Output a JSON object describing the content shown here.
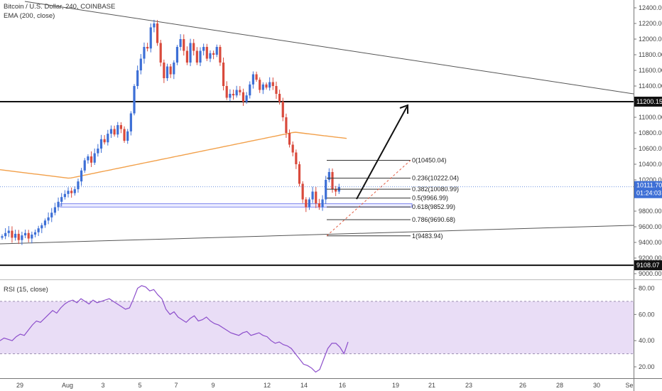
{
  "header": {
    "symbol_line": "Bitcoin / U.S. Dollar, 240, COINBASE",
    "ema_line": "EMA (200, close)",
    "rsi_line": "RSI (15, close)"
  },
  "colors": {
    "up": "#3d6fd6",
    "down": "#d94a3c",
    "ema": "#f2a04a",
    "rsi": "#8c4ecb",
    "rsi_band": "#e9ddf6",
    "price_tag": "#3d6fd6"
  },
  "chart_data": [
    {
      "type": "candlestick",
      "title": "Bitcoin / U.S. Dollar, 240, COINBASE",
      "ylim": [
        9000,
        12400
      ],
      "y_ticks": [
        12400,
        12200,
        12000,
        11800,
        11600,
        11400,
        11200,
        11000,
        10800,
        10600,
        10400,
        10200,
        10000,
        9800,
        9600,
        9400,
        9200,
        9000
      ],
      "x_ticks": [
        "29",
        "Aug",
        "3",
        "5",
        "7",
        "9",
        "12",
        "14",
        "16",
        "19",
        "21",
        "23",
        "26",
        "28",
        "30",
        "Se"
      ],
      "close_series": [
        9480,
        9520,
        9550,
        9460,
        9510,
        9430,
        9490,
        9520,
        9450,
        9500,
        9530,
        9580,
        9620,
        9680,
        9720,
        9780,
        9850,
        9920,
        9980,
        10020,
        10060,
        10030,
        10080,
        10180,
        10320,
        10450,
        10500,
        10420,
        10540,
        10600,
        10720,
        10680,
        10790,
        10850,
        10780,
        10900,
        10850,
        10700,
        10820,
        11050,
        11400,
        11600,
        11750,
        11900,
        11880,
        12150,
        12200,
        11950,
        11700,
        11500,
        11650,
        11550,
        11700,
        11900,
        12000,
        11850,
        11700,
        11950,
        11850,
        11700,
        11850,
        11900,
        11750,
        11820,
        11800,
        11900,
        11700,
        11400,
        11250,
        11300,
        11280,
        11350,
        11320,
        11200,
        11280,
        11420,
        11550,
        11480,
        11350,
        11420,
        11380,
        11450,
        11400,
        11300,
        11200,
        11000,
        10800,
        10650,
        10550,
        10400,
        10150,
        9950,
        9850,
        9950,
        10050,
        9900,
        9850,
        9950,
        10200,
        10300,
        10080,
        10050,
        10111
      ],
      "ema200": {
        "label": "EMA (200, close)",
        "start": 10330,
        "end": 10730
      },
      "horizontal_levels": [
        {
          "label": "11200.15",
          "value": 11200.15
        },
        {
          "label": "9108.07",
          "value": 9108.07
        }
      ],
      "last_price": {
        "label": "10111.70",
        "countdown": "01:24:03",
        "value": 10111.7
      },
      "fibonacci": [
        {
          "label": "0(10450.04)",
          "value": 10450.04
        },
        {
          "label": "0.236(10222.04)",
          "value": 10222.04
        },
        {
          "label": "0.382(10080.99)",
          "value": 10080.99
        },
        {
          "label": "0.5(9966.99)",
          "value": 9966.99
        },
        {
          "label": "0.618(9852.99)",
          "value": 9852.99
        },
        {
          "label": "0.786(9690.68)",
          "value": 9690.68
        },
        {
          "label": "1(9483.94)",
          "value": 9483.94
        }
      ],
      "support_box": {
        "from": 9852,
        "to": 9895
      },
      "trendlines": [
        "descending resistance from top-left",
        "ascending support from lower-left"
      ],
      "annotation_arrow": "up-right projection toward 11200 level"
    },
    {
      "type": "line",
      "title": "RSI (15, close)",
      "ylim": [
        10,
        90
      ],
      "y_ticks": [
        80,
        60,
        40,
        20
      ],
      "band": [
        30,
        70
      ],
      "values": [
        40,
        42,
        41,
        40,
        43,
        45,
        44,
        48,
        52,
        55,
        54,
        57,
        60,
        63,
        61,
        65,
        68,
        70,
        71,
        69,
        72,
        70,
        68,
        71,
        69,
        70,
        71,
        72,
        70,
        68,
        66,
        64,
        65,
        72,
        80,
        82,
        81,
        78,
        79,
        75,
        72,
        64,
        60,
        62,
        58,
        56,
        54,
        57,
        59,
        55,
        56,
        58,
        55,
        53,
        52,
        50,
        48,
        46,
        45,
        44,
        46,
        47,
        44,
        45,
        46,
        44,
        43,
        40,
        38,
        39,
        37,
        36,
        34,
        30,
        26,
        22,
        21,
        19,
        16,
        18,
        26,
        34,
        38,
        38,
        35,
        30,
        39
      ]
    }
  ]
}
